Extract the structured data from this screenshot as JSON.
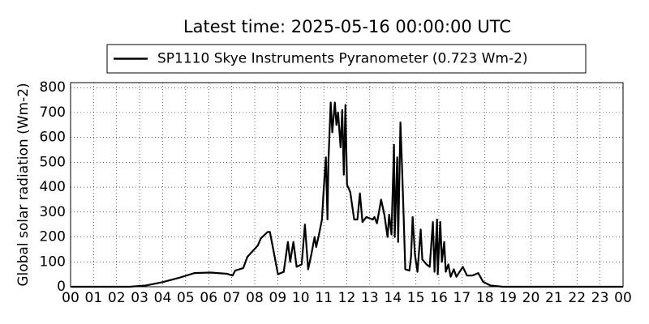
{
  "chart_data": {
    "type": "line",
    "title": "Latest time: 2025-05-16 00:00:00 UTC",
    "y_label": "Global solar radiation (Wm-2)",
    "x": [
      0,
      2.57,
      3.27,
      3.98,
      4.68,
      5.39,
      6.09,
      6.8,
      7.04,
      7.15,
      7.5,
      7.68,
      8.13,
      8.27,
      8.56,
      8.66,
      9.01,
      9.26,
      9.44,
      9.54,
      9.68,
      9.82,
      10.04,
      10.18,
      10.32,
      10.46,
      10.6,
      10.67,
      10.77,
      10.92,
      10.99,
      11.09,
      11.16,
      11.2,
      11.3,
      11.37,
      11.48,
      11.55,
      11.62,
      11.73,
      11.8,
      11.87,
      11.94,
      12.01,
      12.15,
      12.32,
      12.46,
      12.57,
      12.68,
      12.85,
      13.13,
      13.2,
      13.31,
      13.49,
      13.63,
      13.77,
      13.84,
      13.94,
      14.05,
      14.08,
      14.19,
      14.23,
      14.33,
      14.4,
      14.47,
      14.54,
      14.72,
      14.79,
      14.86,
      14.96,
      15.07,
      15.21,
      15.28,
      15.46,
      15.6,
      15.74,
      15.81,
      15.92,
      15.95,
      16.06,
      16.13,
      16.23,
      16.3,
      16.41,
      16.51,
      16.65,
      16.76,
      17.04,
      17.22,
      17.46,
      17.71,
      17.92,
      18.24,
      18.77,
      24
    ],
    "series": [
      {
        "name": "SP1110 Skye Instruments Pyranometer (0.723 Wm-2)",
        "color": "#000000",
        "values": [
          0,
          0,
          5,
          18,
          35,
          55,
          57,
          52,
          45,
          65,
          75,
          120,
          165,
          195,
          220,
          220,
          50,
          60,
          180,
          100,
          180,
          80,
          90,
          250,
          70,
          130,
          200,
          160,
          200,
          270,
          380,
          520,
          270,
          500,
          740,
          620,
          740,
          650,
          700,
          560,
          710,
          450,
          730,
          410,
          380,
          270,
          270,
          375,
          260,
          280,
          270,
          280,
          255,
          350,
          290,
          200,
          290,
          210,
          570,
          200,
          520,
          180,
          660,
          480,
          280,
          70,
          65,
          120,
          280,
          130,
          60,
          230,
          110,
          90,
          80,
          260,
          60,
          270,
          50,
          260,
          100,
          180,
          60,
          90,
          40,
          70,
          40,
          80,
          45,
          45,
          55,
          20,
          5,
          0,
          0
        ]
      }
    ],
    "xlim": [
      0,
      24
    ],
    "xticks": [
      {
        "value": 0,
        "label": "00"
      },
      {
        "value": 1,
        "label": "01"
      },
      {
        "value": 2,
        "label": "02"
      },
      {
        "value": 3,
        "label": "03"
      },
      {
        "value": 4,
        "label": "04"
      },
      {
        "value": 5,
        "label": "05"
      },
      {
        "value": 6,
        "label": "06"
      },
      {
        "value": 7,
        "label": "07"
      },
      {
        "value": 8,
        "label": "08"
      },
      {
        "value": 9,
        "label": "09"
      },
      10,
      11,
      12,
      13,
      14,
      15,
      16,
      17,
      18,
      19,
      20,
      21,
      22,
      23,
      {
        "value": 24,
        "label": "00"
      }
    ],
    "ylim": [
      0,
      820
    ],
    "yticks": [
      0,
      100,
      200,
      300,
      400,
      500,
      600,
      700,
      800
    ],
    "grid": true,
    "legend": "top"
  }
}
